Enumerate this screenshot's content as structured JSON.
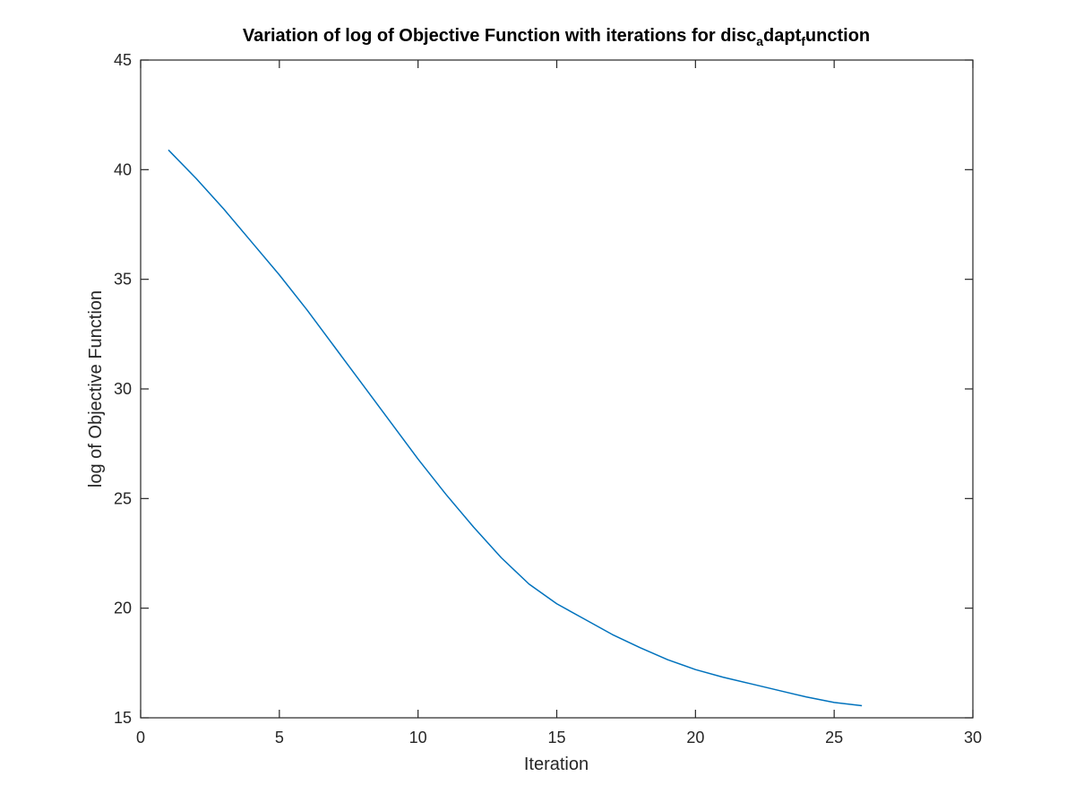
{
  "chart_data": {
    "type": "line",
    "title": {
      "parts": [
        {
          "text": "Variation of log of Objective Function with iterations for disc",
          "sub": false
        },
        {
          "text": "a",
          "sub": true
        },
        {
          "text": "dapt",
          "sub": false
        },
        {
          "text": "f",
          "sub": true
        },
        {
          "text": "unction",
          "sub": false
        }
      ]
    },
    "xlabel": "Iteration",
    "ylabel": "log of Objective Function",
    "xlim": [
      0,
      30
    ],
    "ylim": [
      15,
      45
    ],
    "xticks": [
      0,
      5,
      10,
      15,
      20,
      25,
      30
    ],
    "yticks": [
      15,
      20,
      25,
      30,
      35,
      40,
      45
    ],
    "grid": false,
    "series": [
      {
        "name": "log of Objective Function",
        "color": "#0072bd",
        "x": [
          1,
          2,
          3,
          4,
          5,
          6,
          7,
          8,
          9,
          10,
          11,
          12,
          13,
          14,
          15,
          16,
          17,
          18,
          19,
          20,
          21,
          22,
          23,
          24,
          25,
          26
        ],
        "values": [
          40.9,
          39.6,
          38.2,
          36.7,
          35.2,
          33.6,
          31.9,
          30.2,
          28.5,
          26.8,
          25.2,
          23.7,
          22.3,
          21.1,
          20.2,
          19.5,
          18.8,
          18.2,
          17.65,
          17.2,
          16.85,
          16.55,
          16.25,
          15.95,
          15.7,
          15.55
        ]
      }
    ]
  }
}
